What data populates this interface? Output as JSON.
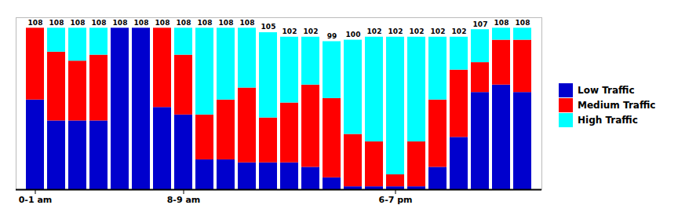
{
  "chart_data": {
    "type": "bar",
    "stacked": true,
    "categories": [
      "0-1 am",
      null,
      null,
      null,
      null,
      null,
      null,
      "8-9 am",
      null,
      null,
      null,
      null,
      null,
      null,
      null,
      null,
      null,
      "6-7 pm",
      null,
      null,
      null,
      null,
      null,
      null
    ],
    "series": [
      {
        "name": "Low Traffic",
        "color": "#0000CD",
        "values": [
          60,
          46,
          46,
          46,
          108,
          108,
          55,
          50,
          20,
          20,
          18,
          18,
          18,
          15,
          8,
          2,
          2,
          2,
          2,
          15,
          35,
          65,
          70,
          65
        ]
      },
      {
        "name": "Medium Traffic",
        "color": "#FF0000",
        "values": [
          48,
          46,
          40,
          44,
          0,
          0,
          53,
          40,
          30,
          40,
          50,
          30,
          40,
          55,
          53,
          35,
          30,
          8,
          30,
          45,
          45,
          20,
          30,
          35
        ]
      },
      {
        "name": "High Traffic",
        "color": "#00FFFF",
        "values": [
          0,
          16,
          22,
          18,
          0,
          0,
          0,
          18,
          58,
          48,
          40,
          57,
          44,
          32,
          38,
          63,
          70,
          92,
          70,
          42,
          22,
          22,
          8,
          8
        ]
      }
    ],
    "totals": [
      108,
      108,
      108,
      108,
      108,
      108,
      108,
      108,
      108,
      108,
      108,
      105,
      102,
      102,
      99,
      100,
      102,
      102,
      102,
      102,
      102,
      107,
      108,
      108
    ],
    "ylim": [
      0,
      115
    ],
    "tick_labels": "x",
    "grid": false,
    "legend": "right"
  }
}
